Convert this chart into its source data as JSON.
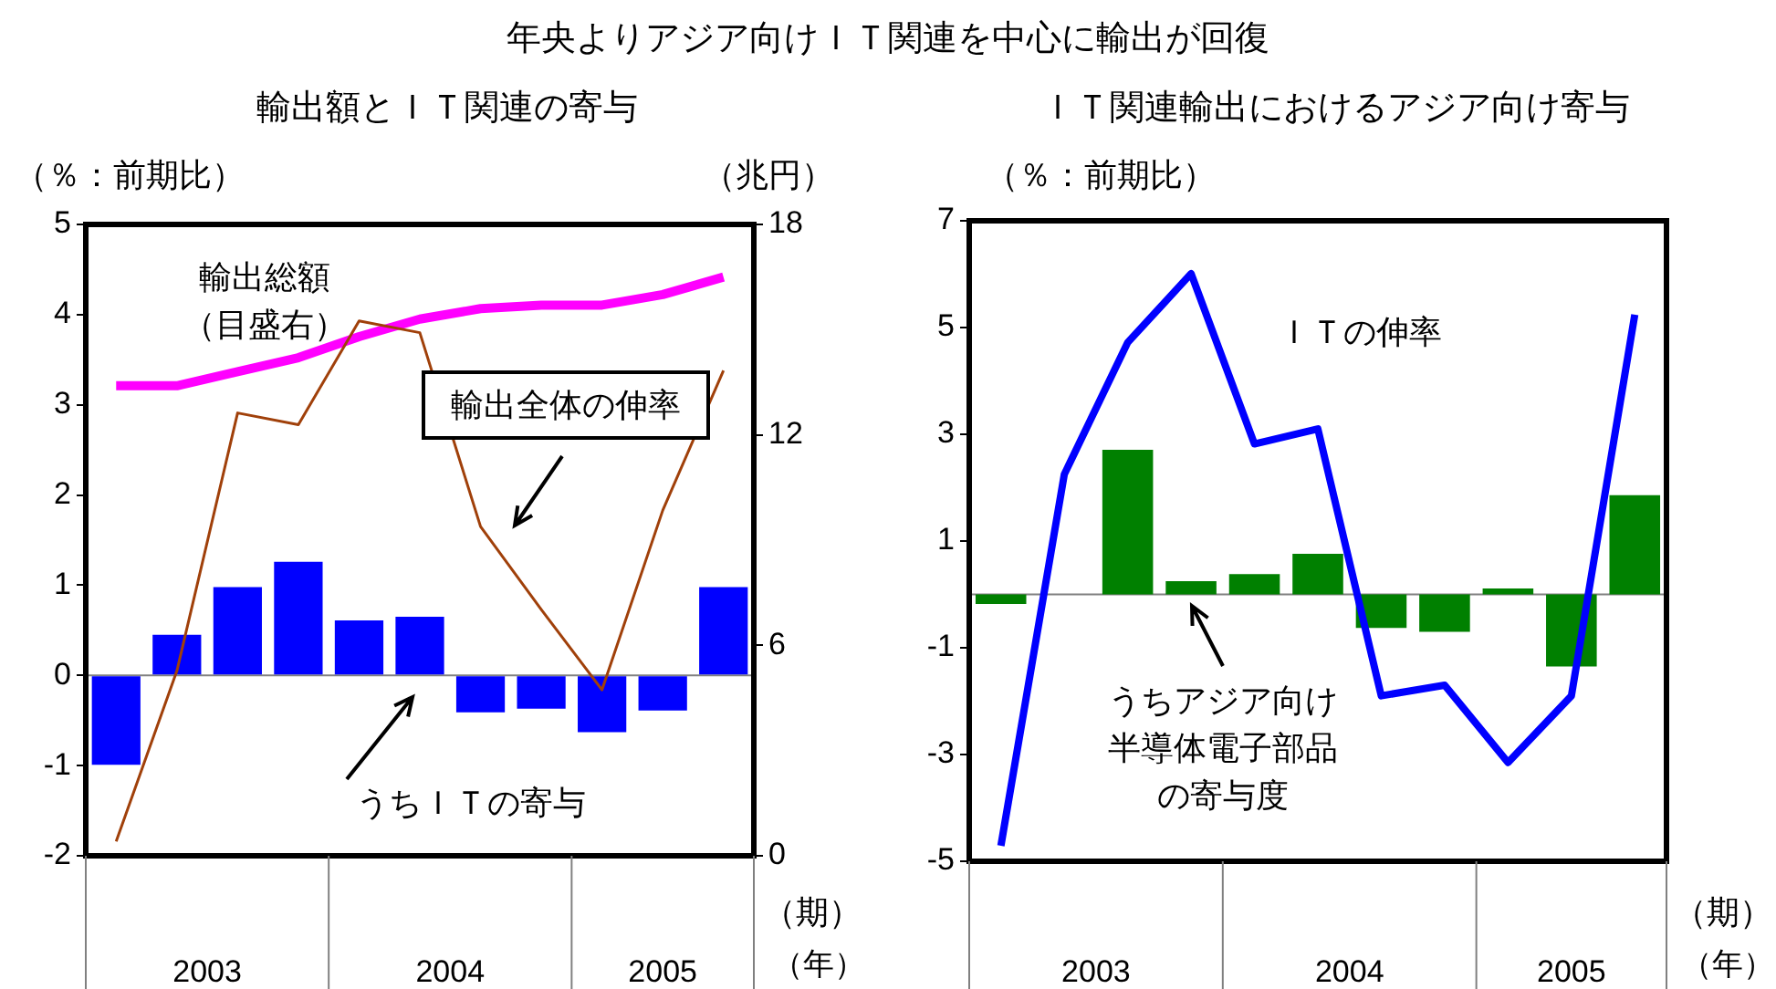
{
  "chart_data": [
    {
      "type": "bar",
      "title": "年央よりアジア向けＩＴ関連を中心に輸出が回復",
      "subtitle": "輸出額とＩＴ関連の寄与",
      "ylabel": "（％：前期比）",
      "y2label": "（兆円）",
      "xlabel": "（期）",
      "categories": [
        null,
        null,
        null,
        null,
        null,
        null,
        null,
        null,
        null,
        null,
        null
      ],
      "series": [
        {
          "name": "うちＩＴの寄与",
          "color": "#0000ff",
          "values": [
            -0.99,
            0.45,
            0.98,
            1.26,
            0.61,
            0.65,
            -0.41,
            -0.37,
            -0.63,
            -0.39,
            0.98
          ]
        },
        {
          "name": "輸出全体の伸率",
          "type": "line",
          "color": "#a0400a",
          "values": [
            -1.84,
            0.05,
            2.91,
            2.78,
            3.93,
            3.8,
            1.65,
            0.73,
            -0.16,
            1.83,
            3.38
          ]
        },
        {
          "name": "輸出総額（目盛右）",
          "type": "line",
          "axis": "y2",
          "color": "#ff00ff",
          "values": [
            13.4,
            13.4,
            13.8,
            14.2,
            14.8,
            15.3,
            15.6,
            15.7,
            15.7,
            16.0,
            16.5
          ]
        }
      ],
      "ylim": [
        -2,
        5
      ],
      "yticks": [
        -2,
        -1,
        0,
        1,
        2,
        3,
        4,
        5
      ],
      "y2lim": [
        0,
        18
      ],
      "y2ticks": [
        0,
        6,
        12,
        18
      ],
      "ref_lines": [
        {
          "axis": "y",
          "value": 0,
          "color": "#808080"
        }
      ],
      "annotations": [
        "2003",
        "2004",
        "2005",
        "（年）"
      ],
      "grid": false,
      "legend": false,
      "marker": "none"
    },
    {
      "type": "bar",
      "subtitle": "ＩＴ関連輸出におけるアジア向け寄与",
      "ylabel": "（％：前期比）",
      "xlabel": "（期）",
      "categories": [
        null,
        null,
        null,
        null,
        null,
        null,
        null,
        null,
        null,
        null,
        null
      ],
      "series": [
        {
          "name": "うちアジア向け半導体電子部品の寄与度",
          "color": "#008000",
          "values": [
            -0.18,
            0.0,
            2.71,
            0.25,
            0.38,
            0.76,
            -0.63,
            -0.7,
            0.11,
            -1.35,
            1.86
          ]
        },
        {
          "name": "ＩＴの伸率",
          "type": "line",
          "color": "#0000ff",
          "values": [
            -4.71,
            2.25,
            4.72,
            6.01,
            2.82,
            3.1,
            -1.9,
            -1.7,
            -3.15,
            -1.9,
            5.24
          ]
        }
      ],
      "ylim": [
        -5,
        7
      ],
      "yticks": [
        -5,
        -3,
        -1,
        1,
        3,
        5,
        7
      ],
      "ref_lines": [
        {
          "axis": "y",
          "value": 0,
          "color": "#808080"
        }
      ],
      "annotations": [
        "2003",
        "2004",
        "2005",
        "（年）"
      ],
      "grid": false,
      "legend": false,
      "marker": "none"
    }
  ]
}
